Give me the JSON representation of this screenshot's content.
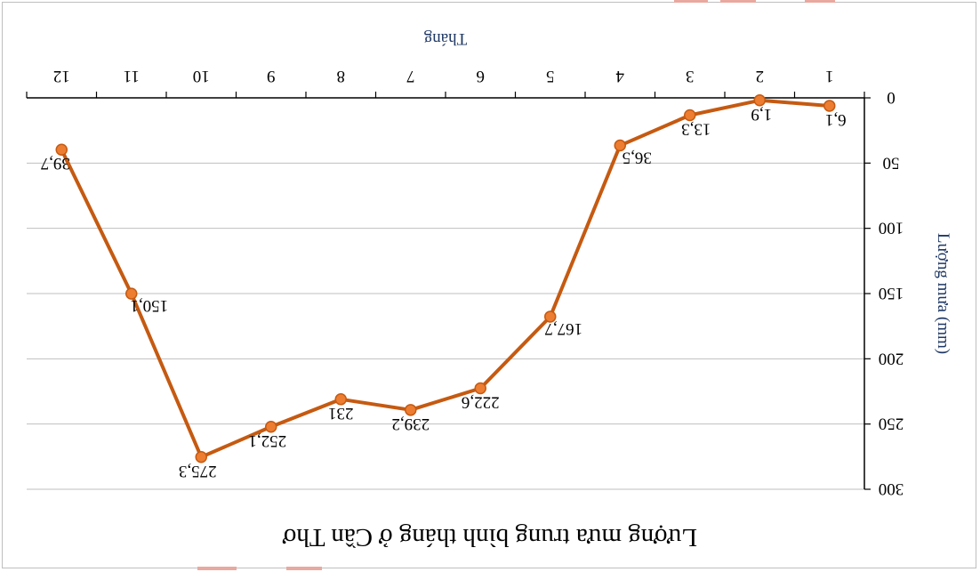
{
  "chart_data": {
    "type": "line",
    "title": "Lượng mưa trung bình tháng ở Cần Thơ",
    "xlabel": "Tháng",
    "ylabel": "Lượng mưa (mm)",
    "categories": [
      "1",
      "2",
      "3",
      "4",
      "5",
      "6",
      "7",
      "8",
      "9",
      "10",
      "11",
      "12"
    ],
    "values": [
      6.1,
      1.9,
      13.3,
      36.5,
      167.7,
      222.6,
      239.2,
      231,
      252.1,
      275.3,
      150.1,
      39.7
    ],
    "data_labels": [
      "6,1",
      "1,9",
      "13,3",
      "36,5",
      "167,7",
      "222,6",
      "239,2",
      "231",
      "252,1",
      "275,3",
      "150,1",
      "39,7"
    ],
    "y_ticks": [
      "0",
      "50",
      "100",
      "150",
      "200",
      "250",
      "300"
    ],
    "ylim": [
      0,
      300
    ],
    "grid": true,
    "orientation": "rotated 180 degrees",
    "colors": {
      "line": "#c55a11",
      "marker": "#ed7d31",
      "grid": "#bfbfbf",
      "axis_title": "#1f3864"
    }
  }
}
